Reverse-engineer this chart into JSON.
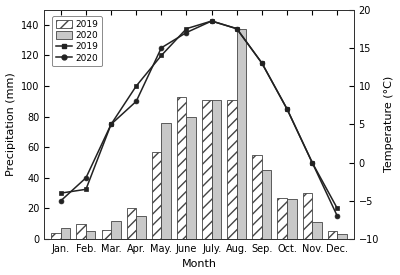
{
  "months": [
    "Jan.",
    "Feb.",
    "Mar.",
    "Apr.",
    "May.",
    "June",
    "July.",
    "Aug.",
    "Sep.",
    "Oct.",
    "Nov.",
    "Dec."
  ],
  "precip_2019": [
    4,
    10,
    6,
    20,
    57,
    93,
    91,
    91,
    55,
    27,
    30,
    5
  ],
  "precip_2020": [
    7,
    5,
    12,
    15,
    76,
    80,
    91,
    137,
    45,
    26,
    11,
    3
  ],
  "temp_2019": [
    -4.0,
    -3.5,
    5.0,
    10.0,
    14.0,
    17.5,
    18.5,
    17.5,
    13.0,
    7.0,
    0.0,
    -6.0
  ],
  "temp_2020": [
    -5.0,
    -2.0,
    5.0,
    8.0,
    15.0,
    17.0,
    18.5,
    17.5,
    13.0,
    7.0,
    0.0,
    -7.0
  ],
  "ylabel_left": "Precipitation (mm)",
  "ylabel_right": "Temperature (°C)",
  "xlabel": "Month",
  "ylim_left": [
    0,
    150
  ],
  "ylim_right": [
    -10,
    20
  ],
  "yticks_left": [
    0,
    20,
    40,
    60,
    80,
    100,
    120,
    140
  ],
  "yticks_right": [
    -10,
    -5,
    0,
    5,
    10,
    15,
    20
  ],
  "hatch_2019": "///",
  "bar_color_2019_face": "white",
  "bar_color_2020_face": "#c8c8c8",
  "bar_edge_color": "#444444",
  "line_color": "#222222",
  "bar_width": 0.38,
  "figsize": [
    4.0,
    2.75
  ],
  "dpi": 100,
  "tick_labelsize": 7,
  "axis_labelsize": 8
}
